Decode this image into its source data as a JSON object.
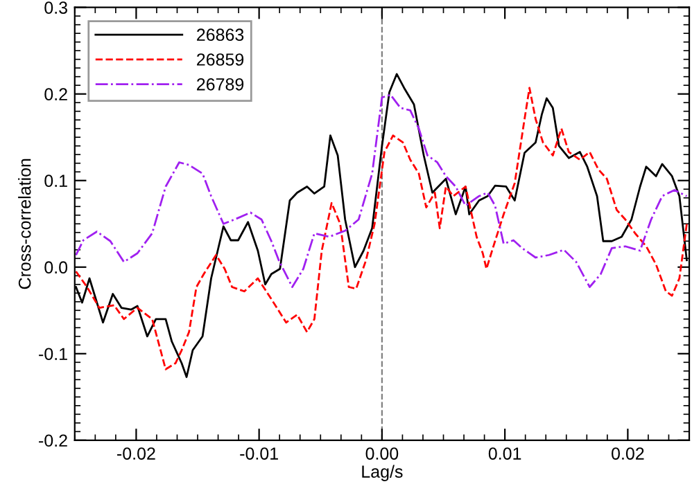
{
  "chart_data": {
    "type": "line",
    "xlabel": "Lag/s",
    "ylabel": "Cross-correlation",
    "xlim": [
      -0.025,
      0.025
    ],
    "ylim": [
      -0.2,
      0.3
    ],
    "xticks": [
      -0.02,
      -0.01,
      {
        "value": 0,
        "label": "0.00"
      },
      0.01,
      0.02
    ],
    "yticks": [
      -0.2,
      -0.1,
      {
        "value": 0,
        "label": "0.0"
      },
      0.1,
      0.2,
      0.3
    ],
    "legend": "top left",
    "grid": false,
    "ref_lines": [
      {
        "axis": "x",
        "value": 0,
        "color": "#808080",
        "line_style": "dashed"
      }
    ],
    "series": [
      {
        "name": "26863",
        "color": "#000000",
        "line_style": "solid",
        "x": [
          -0.0249,
          -0.0244,
          -0.0238,
          -0.0227,
          -0.0219,
          -0.0212,
          -0.0204,
          -0.0199,
          -0.0191,
          -0.0184,
          -0.0176,
          -0.0171,
          -0.0163,
          -0.0159,
          -0.0154,
          -0.0146,
          -0.0139,
          -0.0129,
          -0.0123,
          -0.0117,
          -0.0109,
          -0.0101,
          -0.0095,
          -0.009,
          -0.0083,
          -0.0075,
          -0.0069,
          -0.0061,
          -0.0055,
          -0.0047,
          -0.0042,
          -0.0036,
          -0.003,
          -0.0022,
          -0.0015,
          -0.0008,
          0.0,
          0.0006,
          0.0012,
          0.0018,
          0.0026,
          0.0034,
          0.0041,
          0.0052,
          0.006,
          0.0068,
          0.0071,
          0.0079,
          0.0086,
          0.0092,
          0.0101,
          0.0108,
          0.0116,
          0.0125,
          0.013,
          0.0134,
          0.0139,
          0.0144,
          0.0152,
          0.0161,
          0.0167,
          0.0175,
          0.018,
          0.0187,
          0.0195,
          0.0203,
          0.021,
          0.0215,
          0.0223,
          0.0228,
          0.0236,
          0.0242,
          0.0248
        ],
        "values": [
          -0.023,
          -0.041,
          -0.013,
          -0.064,
          -0.031,
          -0.047,
          -0.049,
          -0.045,
          -0.08,
          -0.06,
          -0.06,
          -0.086,
          -0.111,
          -0.127,
          -0.096,
          -0.08,
          -0.013,
          0.047,
          0.031,
          0.031,
          0.052,
          0.019,
          -0.02,
          -0.008,
          -0.002,
          0.077,
          0.086,
          0.093,
          0.085,
          0.093,
          0.152,
          0.129,
          0.055,
          0.0,
          0.019,
          0.045,
          0.14,
          0.202,
          0.223,
          0.207,
          0.188,
          0.129,
          0.086,
          0.102,
          0.061,
          0.093,
          0.061,
          0.077,
          0.082,
          0.094,
          0.093,
          0.077,
          0.132,
          0.144,
          0.176,
          0.195,
          0.184,
          0.14,
          0.126,
          0.133,
          0.116,
          0.082,
          0.03,
          0.03,
          0.035,
          0.055,
          0.093,
          0.116,
          0.105,
          0.119,
          0.105,
          0.082,
          0.008
        ]
      },
      {
        "name": "26859",
        "color": "#ff0000",
        "line_style": "dashed",
        "x": [
          -0.0249,
          -0.024,
          -0.023,
          -0.0218,
          -0.021,
          -0.0199,
          -0.0187,
          -0.0176,
          -0.0168,
          -0.0163,
          -0.0157,
          -0.0151,
          -0.0145,
          -0.0135,
          -0.0128,
          -0.0122,
          -0.0112,
          -0.0101,
          -0.009,
          -0.0078,
          -0.0069,
          -0.0061,
          -0.0055,
          -0.0049,
          -0.0041,
          -0.0034,
          -0.0027,
          -0.0021,
          -0.0013,
          -0.0006,
          0.0002,
          0.0009,
          0.0017,
          0.0023,
          0.003,
          0.0036,
          0.0043,
          0.0047,
          0.0052,
          0.0058,
          0.0068,
          0.0077,
          0.0082,
          0.0085,
          0.0092,
          0.0099,
          0.0108,
          0.0116,
          0.012,
          0.0125,
          0.0131,
          0.0139,
          0.0146,
          0.0152,
          0.0161,
          0.0169,
          0.0176,
          0.0183,
          0.0191,
          0.0198,
          0.0206,
          0.0215,
          0.0223,
          0.0231,
          0.0236,
          0.0242,
          0.0248
        ],
        "values": [
          -0.005,
          -0.023,
          -0.047,
          -0.044,
          -0.06,
          -0.047,
          -0.06,
          -0.118,
          -0.111,
          -0.096,
          -0.075,
          -0.023,
          -0.008,
          0.014,
          -0.002,
          -0.023,
          -0.028,
          -0.013,
          -0.037,
          -0.064,
          -0.055,
          -0.075,
          -0.06,
          0.019,
          0.074,
          0.05,
          -0.023,
          -0.025,
          0.008,
          0.05,
          0.133,
          0.152,
          0.144,
          0.124,
          0.108,
          0.069,
          0.086,
          0.045,
          0.093,
          0.082,
          0.093,
          0.035,
          0.016,
          -0.002,
          0.03,
          0.061,
          0.097,
          0.171,
          0.207,
          0.171,
          0.144,
          0.129,
          0.16,
          0.133,
          0.124,
          0.133,
          0.113,
          0.102,
          0.066,
          0.055,
          0.039,
          0.024,
          0.003,
          -0.028,
          -0.033,
          -0.013,
          0.05
        ]
      },
      {
        "name": "26789",
        "color": "#a020f0",
        "line_style": "dashdot",
        "x": [
          -0.0249,
          -0.0243,
          -0.0232,
          -0.0221,
          -0.021,
          -0.0199,
          -0.0187,
          -0.0176,
          -0.0165,
          -0.0157,
          -0.0146,
          -0.0139,
          -0.0129,
          -0.012,
          -0.0107,
          -0.0098,
          -0.009,
          -0.0084,
          -0.0073,
          -0.0064,
          -0.0055,
          -0.0043,
          -0.003,
          -0.0019,
          -0.0008,
          0.0,
          0.0007,
          0.0015,
          0.0023,
          0.003,
          0.0037,
          0.0045,
          0.0052,
          0.006,
          0.0068,
          0.0079,
          0.0086,
          0.0092,
          0.0099,
          0.0107,
          0.0114,
          0.0125,
          0.0136,
          0.0148,
          0.0158,
          0.0169,
          0.0178,
          0.0187,
          0.0198,
          0.021,
          0.0219,
          0.0228,
          0.0238,
          0.0248
        ],
        "values": [
          0.014,
          0.031,
          0.041,
          0.03,
          0.006,
          0.016,
          0.039,
          0.093,
          0.121,
          0.118,
          0.108,
          0.082,
          0.05,
          0.055,
          0.063,
          0.055,
          0.03,
          0.008,
          -0.023,
          -0.002,
          0.039,
          0.035,
          0.042,
          0.055,
          0.108,
          0.196,
          0.199,
          0.184,
          0.181,
          0.16,
          0.129,
          0.121,
          0.105,
          0.093,
          0.071,
          0.082,
          0.086,
          0.071,
          0.027,
          0.031,
          0.022,
          0.011,
          0.014,
          0.02,
          0.006,
          -0.023,
          -0.008,
          0.022,
          0.024,
          0.019,
          0.055,
          0.082,
          0.089,
          0.082
        ]
      }
    ]
  }
}
